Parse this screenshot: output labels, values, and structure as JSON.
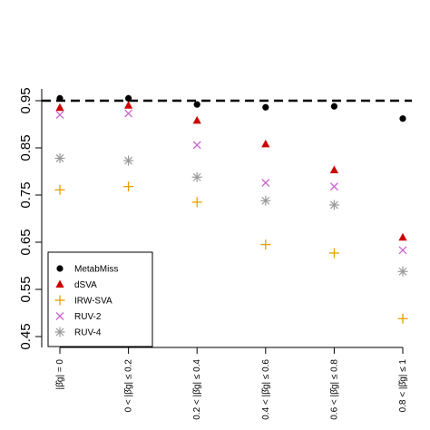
{
  "chart_data": {
    "type": "scatter",
    "title": "",
    "xlabel": "",
    "ylabel": "",
    "categories": [
      "|β̂g| = 0",
      "0 < |β̂g| ≤ 0.2",
      "0.2 < |β̂g| ≤ 0.4",
      "0.4 < |β̂g| ≤ 0.6",
      "0.6 < |β̂g| ≤ 0.8",
      "0.8 < |β̂g| ≤ 1"
    ],
    "yticks": [
      "0.45",
      "0.55",
      "0.65",
      "0.75",
      "0.85",
      "0.95"
    ],
    "ylim": [
      0.44,
      1.0
    ],
    "reference_line": 0.95,
    "legend_position": "bottom-left",
    "series": [
      {
        "name": "MetabMiss",
        "marker": "circle",
        "color": "#000000",
        "values": [
          0.955,
          0.955,
          0.942,
          0.936,
          0.938,
          0.912
        ]
      },
      {
        "name": "dSVA",
        "marker": "triangle",
        "color": "#cc0000",
        "values": [
          0.935,
          0.94,
          0.908,
          0.858,
          0.803,
          0.66
        ]
      },
      {
        "name": "IRW-SVA",
        "marker": "plus",
        "color": "#e69f00",
        "values": [
          0.761,
          0.768,
          0.735,
          0.645,
          0.627,
          0.488
        ]
      },
      {
        "name": "RUV-2",
        "marker": "cross",
        "color": "#cc66cc",
        "values": [
          0.92,
          0.923,
          0.856,
          0.776,
          0.768,
          0.633
        ]
      },
      {
        "name": "RUV-4",
        "marker": "asterisk",
        "color": "#999999",
        "values": [
          0.828,
          0.823,
          0.788,
          0.738,
          0.729,
          0.588
        ]
      }
    ]
  }
}
